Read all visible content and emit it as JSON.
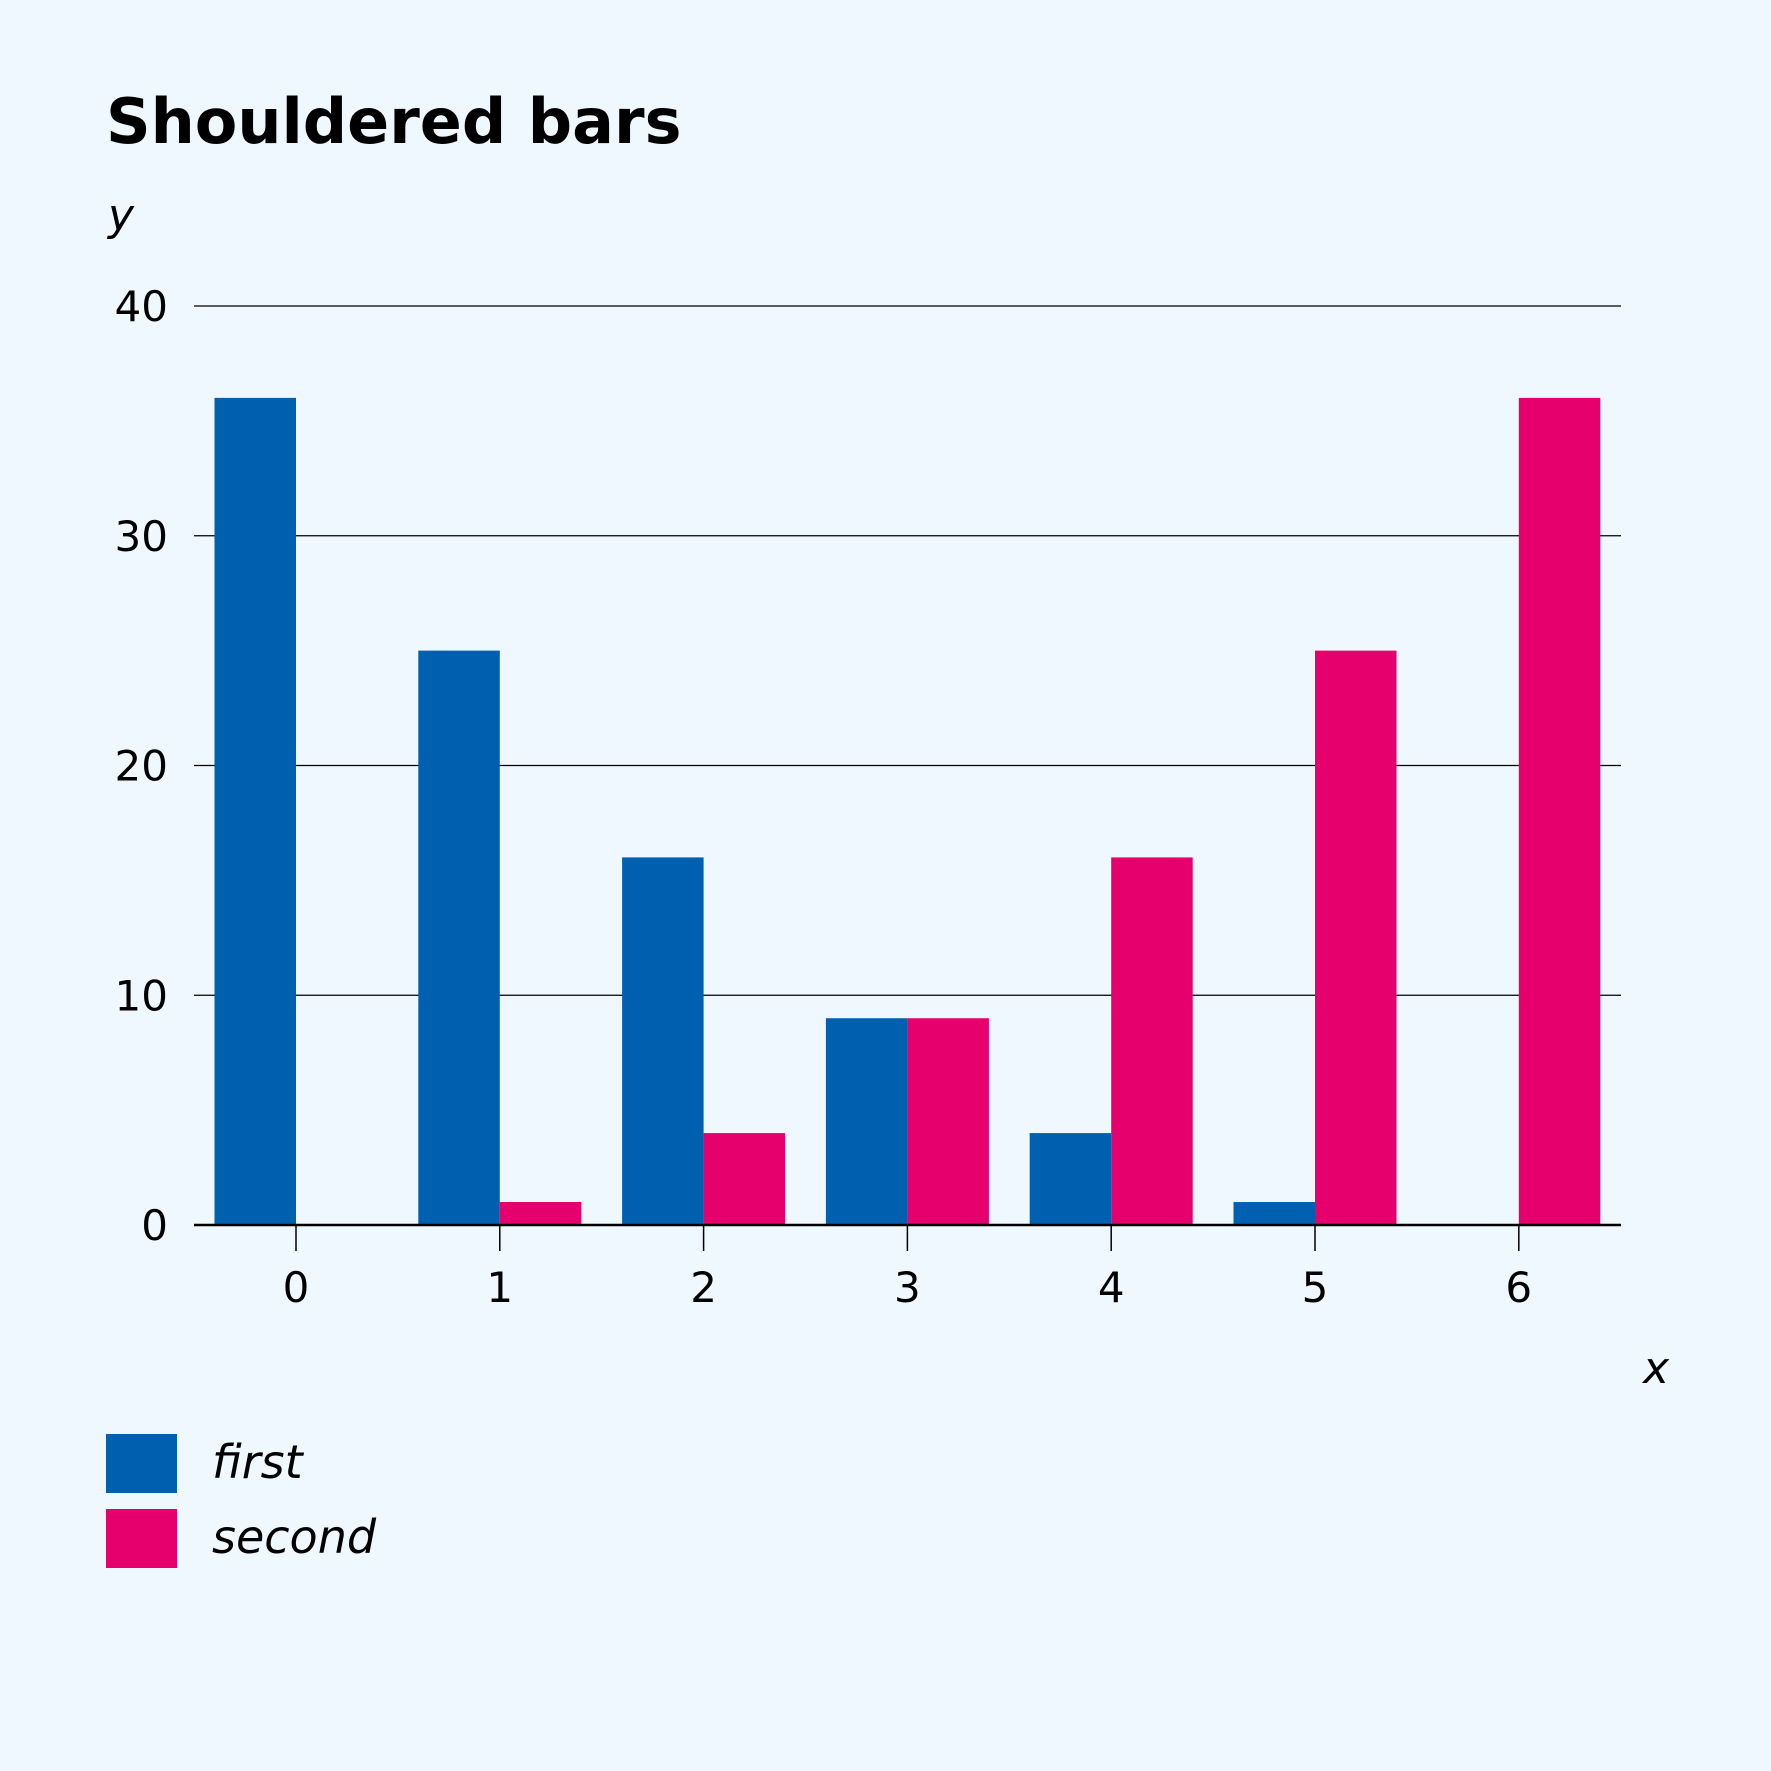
{
  "colors": {
    "background": "#eef8fe",
    "first": "#0060b0",
    "second": "#e5006d"
  },
  "chart_data": {
    "type": "bar",
    "title": "Shouldered bars",
    "xlabel": "x",
    "ylabel": "y",
    "categories": [
      "0",
      "1",
      "2",
      "3",
      "4",
      "5",
      "6"
    ],
    "series": [
      {
        "name": "first",
        "values": [
          36,
          25,
          16,
          9,
          4,
          1,
          0
        ]
      },
      {
        "name": "second",
        "values": [
          0,
          1,
          4,
          9,
          16,
          25,
          36
        ]
      }
    ],
    "yticks": [
      0,
      10,
      20,
      30,
      40
    ],
    "ylim": [
      0,
      40
    ],
    "grid": true,
    "legend": "bottom-left"
  }
}
